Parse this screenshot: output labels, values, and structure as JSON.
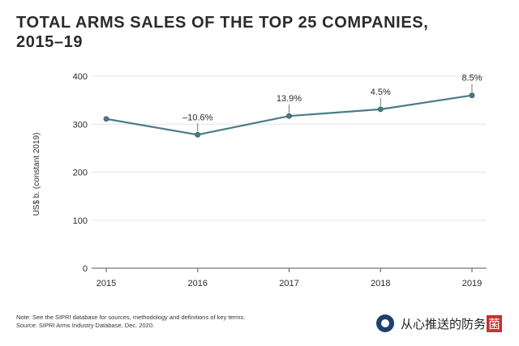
{
  "header": {
    "title": "TOTAL ARMS SALES OF THE TOP 25 COMPANIES, 2015–19"
  },
  "chart_data": {
    "type": "line",
    "x": [
      "2015",
      "2016",
      "2017",
      "2018",
      "2019"
    ],
    "series": [
      {
        "name": "Total arms sales",
        "values": [
          311,
          278,
          317,
          331,
          360
        ],
        "color": "#4a7d86"
      }
    ],
    "annotations": [
      "",
      "–10.6%",
      "13.9%",
      "4.5%",
      "8.5%"
    ],
    "ylabel": "US$ b. (constant 2019)",
    "xlabel": "",
    "ylim": [
      0,
      400
    ],
    "yticks": [
      0,
      100,
      200,
      300,
      400
    ],
    "grid": true,
    "legend": "none"
  },
  "footer": {
    "note": "Note: See the SIPRI database for sources, methodology and definitions of key terms.",
    "source": "Source: SIPRI Arms Industry Database, Dec. 2020."
  },
  "watermark": {
    "text": "从心推送的防务",
    "badge": "菌"
  },
  "colors": {
    "line": "#4a7d86",
    "grid": "#e3e3e3",
    "axis": "#555555",
    "text": "#2b2b2b"
  }
}
